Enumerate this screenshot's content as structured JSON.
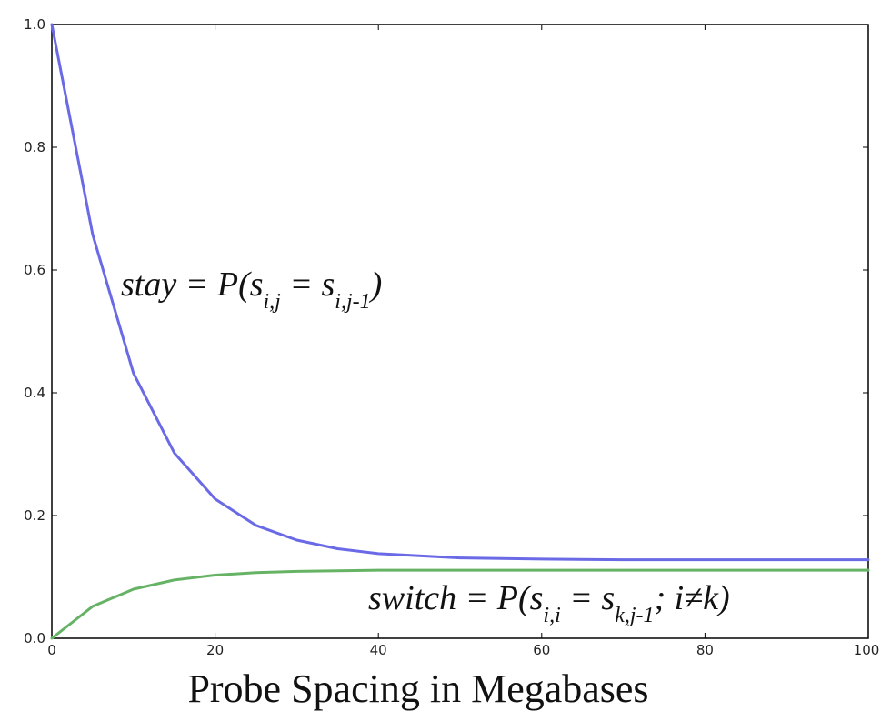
{
  "chart_data": {
    "type": "line",
    "xlabel": "Probe Spacing in Megabases",
    "ylabel": "",
    "xlim": [
      0,
      100
    ],
    "ylim": [
      0.0,
      1.0
    ],
    "xticks": [
      0,
      20,
      40,
      60,
      80,
      100
    ],
    "yticks": [
      0.0,
      0.2,
      0.4,
      0.6,
      0.8,
      1.0
    ],
    "xtick_labels": [
      "0",
      "20",
      "40",
      "60",
      "80",
      "100"
    ],
    "ytick_labels": [
      "0.0",
      "0.2",
      "0.4",
      "0.6",
      "0.8",
      "1.0"
    ],
    "grid": false,
    "series": [
      {
        "color": "#6a6ae6",
        "x": [
          0,
          5,
          10,
          15,
          20,
          25,
          30,
          35,
          40,
          50,
          60,
          70,
          80,
          90,
          100
        ],
        "y": [
          1.0,
          0.658,
          0.432,
          0.302,
          0.227,
          0.184,
          0.16,
          0.146,
          0.138,
          0.131,
          0.129,
          0.128,
          0.128,
          0.128,
          0.128
        ]
      },
      {
        "color": "#66b366",
        "x": [
          0,
          5,
          10,
          15,
          20,
          25,
          30,
          35,
          40,
          50,
          60,
          70,
          80,
          90,
          100
        ],
        "y": [
          0.0,
          0.052,
          0.08,
          0.095,
          0.103,
          0.107,
          0.109,
          0.11,
          0.111,
          0.111,
          0.111,
          0.111,
          0.111,
          0.111,
          0.111
        ]
      }
    ],
    "annotations": {
      "stay": {
        "pre": "stay = P(s",
        "sub1": "i,j",
        "mid": " = s",
        "sub2": "i,j-1",
        "post": ")"
      },
      "switch": {
        "pre": "switch = P(s",
        "sub1": "i,i",
        "mid": " = s",
        "sub2": "k,j-1",
        "post": "; i≠k)"
      }
    }
  }
}
